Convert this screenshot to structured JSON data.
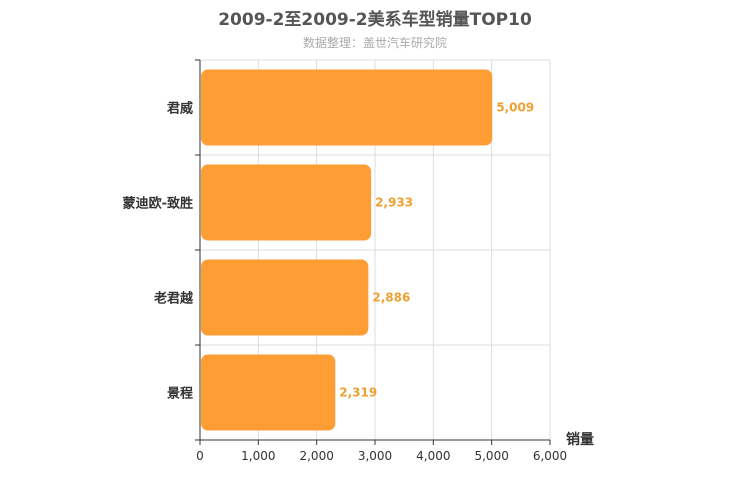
{
  "chart_data": {
    "type": "bar",
    "orientation": "horizontal",
    "title": "2009-2至2009-2美系车型销量TOP10",
    "subtitle": "数据整理：盖世汽车研究院",
    "categories": [
      "君威",
      "蒙迪欧-致胜",
      "老君越",
      "景程"
    ],
    "values": [
      5009,
      2933,
      2886,
      2319
    ],
    "value_labels": [
      "5,009",
      "2,933",
      "2,886",
      "2,319"
    ],
    "xlabel": "销量",
    "xlim": [
      0,
      6000
    ],
    "xticks": [
      0,
      1000,
      2000,
      3000,
      4000,
      5000,
      6000
    ],
    "xtick_labels": [
      "0",
      "1,000",
      "2,000",
      "3,000",
      "4,000",
      "5,000",
      "6,000"
    ],
    "grid": true,
    "legend": "none",
    "colors": {
      "bar": "#ff9d35",
      "value_label": "#f0a030",
      "grid": "#dddddd",
      "axis": "#333333"
    }
  }
}
